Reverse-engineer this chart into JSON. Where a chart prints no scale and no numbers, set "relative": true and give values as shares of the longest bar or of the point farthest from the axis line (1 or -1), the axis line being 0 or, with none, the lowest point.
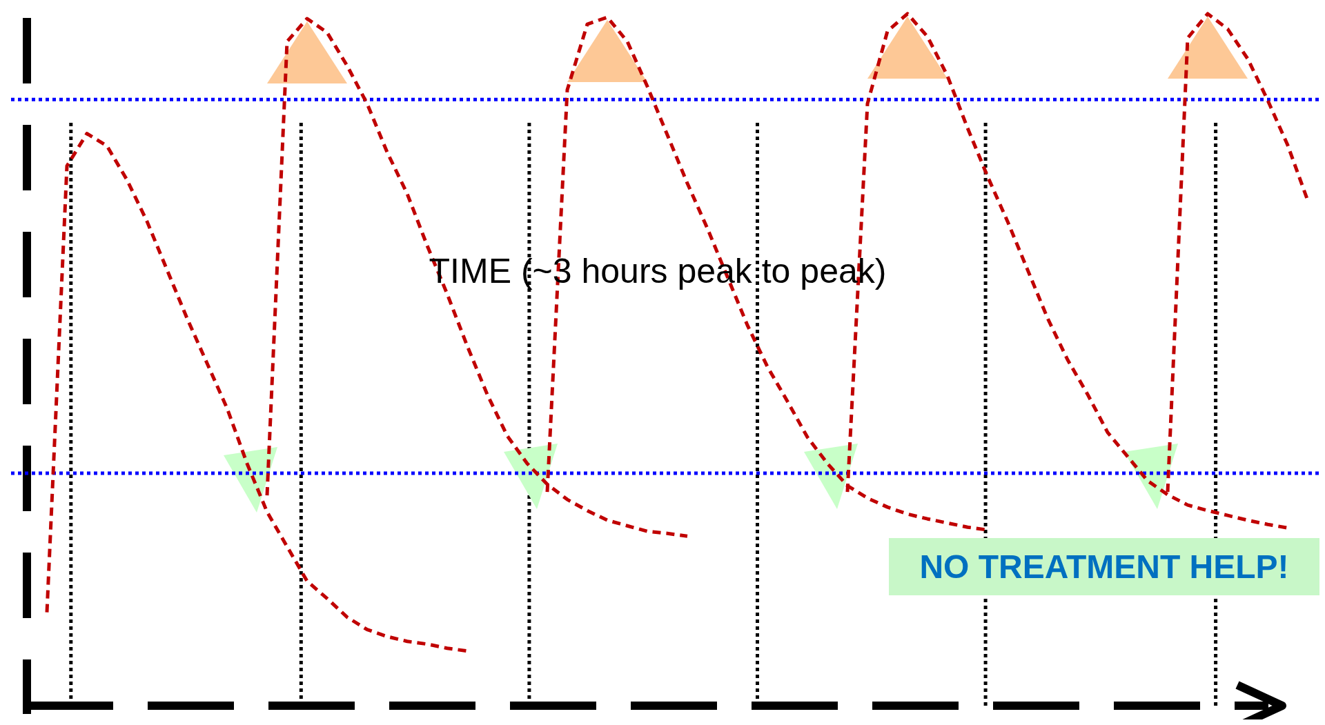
{
  "chart_data": {
    "type": "line",
    "relative": true,
    "grid": "x",
    "line_style": "dashed",
    "categories": [
      null,
      null,
      null,
      null,
      null,
      null,
      null,
      null,
      null,
      null,
      null,
      null,
      null,
      null,
      null,
      null,
      null,
      null,
      null,
      null,
      null,
      null,
      null,
      null,
      null,
      null,
      null,
      null,
      null,
      null,
      null,
      null,
      null,
      null,
      null,
      null,
      null,
      null,
      null,
      null,
      null,
      null,
      null,
      null,
      null,
      null,
      null,
      null,
      null,
      null,
      null,
      null,
      null,
      null,
      null,
      null,
      null,
      null,
      null,
      null,
      null,
      null,
      null,
      null,
      null
    ],
    "series": [
      {
        "color": "#c00000",
        "values": [
          null,
          0.135,
          0.78,
          0.827,
          0.809,
          0.76,
          0.7,
          0.63,
          0.56,
          0.495,
          0.43,
          0.35,
          0.28,
          0.23,
          0.18,
          0.155,
          0.128,
          0.11,
          0.1,
          0.093,
          0.089,
          0.083,
          0.079,
          null,
          null,
          null,
          null,
          null,
          null,
          null,
          null,
          null,
          null,
          null,
          null,
          null,
          null,
          null,
          null,
          null,
          null,
          null,
          null,
          null,
          null,
          null,
          null,
          null,
          null,
          null,
          null,
          null,
          null,
          null,
          null,
          null,
          null,
          null,
          null,
          null,
          null,
          null,
          null,
          null,
          null
        ]
      },
      {
        "color": "#c00000",
        "values": [
          null,
          null,
          null,
          null,
          null,
          null,
          null,
          null,
          null,
          null,
          null,
          null,
          0.304,
          0.96,
          0.993,
          0.973,
          0.925,
          0.87,
          0.8,
          0.74,
          0.665,
          0.595,
          0.52,
          0.45,
          0.39,
          0.35,
          0.32,
          0.298,
          0.282,
          0.268,
          0.26,
          0.252,
          0.249,
          0.245,
          null,
          null,
          null,
          null,
          null,
          null,
          null,
          null,
          null,
          null,
          null,
          null,
          null,
          null,
          null,
          null,
          null,
          null,
          null,
          null,
          null,
          null,
          null,
          null,
          null,
          null,
          null,
          null,
          null,
          null,
          null
        ]
      },
      {
        "color": "#c00000",
        "values": [
          null,
          null,
          null,
          null,
          null,
          null,
          null,
          null,
          null,
          null,
          null,
          null,
          null,
          null,
          null,
          null,
          null,
          null,
          null,
          null,
          null,
          null,
          null,
          null,
          null,
          null,
          0.309,
          0.89,
          0.985,
          0.995,
          0.96,
          0.895,
          0.825,
          0.755,
          0.69,
          0.62,
          0.55,
          0.49,
          0.44,
          0.388,
          0.35,
          0.318,
          0.3,
          0.287,
          0.277,
          0.27,
          0.264,
          0.258,
          0.254,
          null,
          null,
          null,
          null,
          null,
          null,
          null,
          null,
          null,
          null,
          null,
          null,
          null,
          null,
          null,
          null
        ]
      },
      {
        "color": "#c00000",
        "values": [
          null,
          null,
          null,
          null,
          null,
          null,
          null,
          null,
          null,
          null,
          null,
          null,
          null,
          null,
          null,
          null,
          null,
          null,
          null,
          null,
          null,
          null,
          null,
          null,
          null,
          null,
          null,
          null,
          null,
          null,
          null,
          null,
          null,
          null,
          null,
          null,
          null,
          null,
          null,
          null,
          null,
          0.309,
          0.87,
          0.975,
          1,
          0.967,
          0.91,
          0.835,
          0.765,
          0.7,
          0.63,
          0.56,
          0.5,
          0.45,
          0.395,
          0.36,
          0.325,
          0.305,
          0.29,
          0.282,
          0.275,
          0.268,
          0.262,
          0.257,
          null
        ]
      },
      {
        "color": "#c00000",
        "values": [
          null,
          null,
          null,
          null,
          null,
          null,
          null,
          null,
          null,
          null,
          null,
          null,
          null,
          null,
          null,
          null,
          null,
          null,
          null,
          null,
          null,
          null,
          null,
          null,
          null,
          null,
          null,
          null,
          null,
          null,
          null,
          null,
          null,
          null,
          null,
          null,
          null,
          null,
          null,
          null,
          null,
          null,
          null,
          null,
          null,
          null,
          null,
          null,
          null,
          null,
          null,
          null,
          null,
          null,
          null,
          null,
          null,
          0.309,
          0.965,
          1,
          0.978,
          0.935,
          0.875,
          0.81,
          0.73
        ]
      }
    ],
    "ref_lines": [
      {
        "axis": "y",
        "value": 0.876,
        "color": "#0000ff",
        "line_style": "dotted"
      },
      {
        "axis": "y",
        "value": 0.336,
        "color": "#0000ff",
        "line_style": "dotted"
      }
    ],
    "annotations": [
      "TIME (~3 hours peak to peak)",
      "NO TREATMENT HELP!"
    ]
  }
}
